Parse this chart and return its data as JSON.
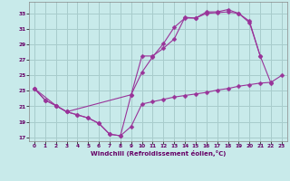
{
  "background_color": "#c8eaea",
  "grid_color": "#a8cccc",
  "line_color": "#993399",
  "xlabel": "Windchill (Refroidissement éolien,°C)",
  "xlim": [
    -0.5,
    23.5
  ],
  "ylim": [
    16.5,
    34.5
  ],
  "yticks": [
    17,
    19,
    21,
    23,
    25,
    27,
    29,
    31,
    33
  ],
  "xticks": [
    0,
    1,
    2,
    3,
    4,
    5,
    6,
    7,
    8,
    9,
    10,
    11,
    12,
    13,
    14,
    15,
    16,
    17,
    18,
    19,
    20,
    21,
    22,
    23
  ],
  "series1_x": [
    0,
    1,
    2,
    3,
    4,
    5,
    6,
    7,
    8,
    9,
    10,
    11,
    12,
    13,
    14,
    15,
    16,
    17,
    18,
    19,
    20,
    21,
    22,
    23
  ],
  "series1_y": [
    23.3,
    21.8,
    21.1,
    20.3,
    19.9,
    19.5,
    18.8,
    17.4,
    17.2,
    18.4,
    21.3,
    21.6,
    21.9,
    22.2,
    22.4,
    22.6,
    22.8,
    23.1,
    23.3,
    23.6,
    23.8,
    24.0,
    24.1,
    25.0
  ],
  "series2_x": [
    0,
    1,
    2,
    3,
    4,
    5,
    6,
    7,
    8,
    9,
    10,
    11,
    12,
    13,
    14,
    15,
    16,
    17,
    18,
    19,
    20,
    21,
    22
  ],
  "series2_y": [
    23.3,
    21.8,
    21.1,
    20.3,
    19.9,
    19.5,
    18.8,
    17.4,
    17.2,
    22.5,
    25.4,
    27.4,
    29.1,
    31.2,
    32.4,
    32.4,
    33.0,
    33.1,
    33.2,
    33.0,
    32.0,
    27.5,
    24.0
  ],
  "series3_x": [
    0,
    2,
    3,
    9,
    10,
    11,
    12,
    13,
    14,
    15,
    16,
    17,
    18,
    19,
    20,
    21
  ],
  "series3_y": [
    23.3,
    21.1,
    20.3,
    22.5,
    27.5,
    27.5,
    28.5,
    29.7,
    32.5,
    32.4,
    33.2,
    33.2,
    33.5,
    33.0,
    31.8,
    27.5
  ]
}
